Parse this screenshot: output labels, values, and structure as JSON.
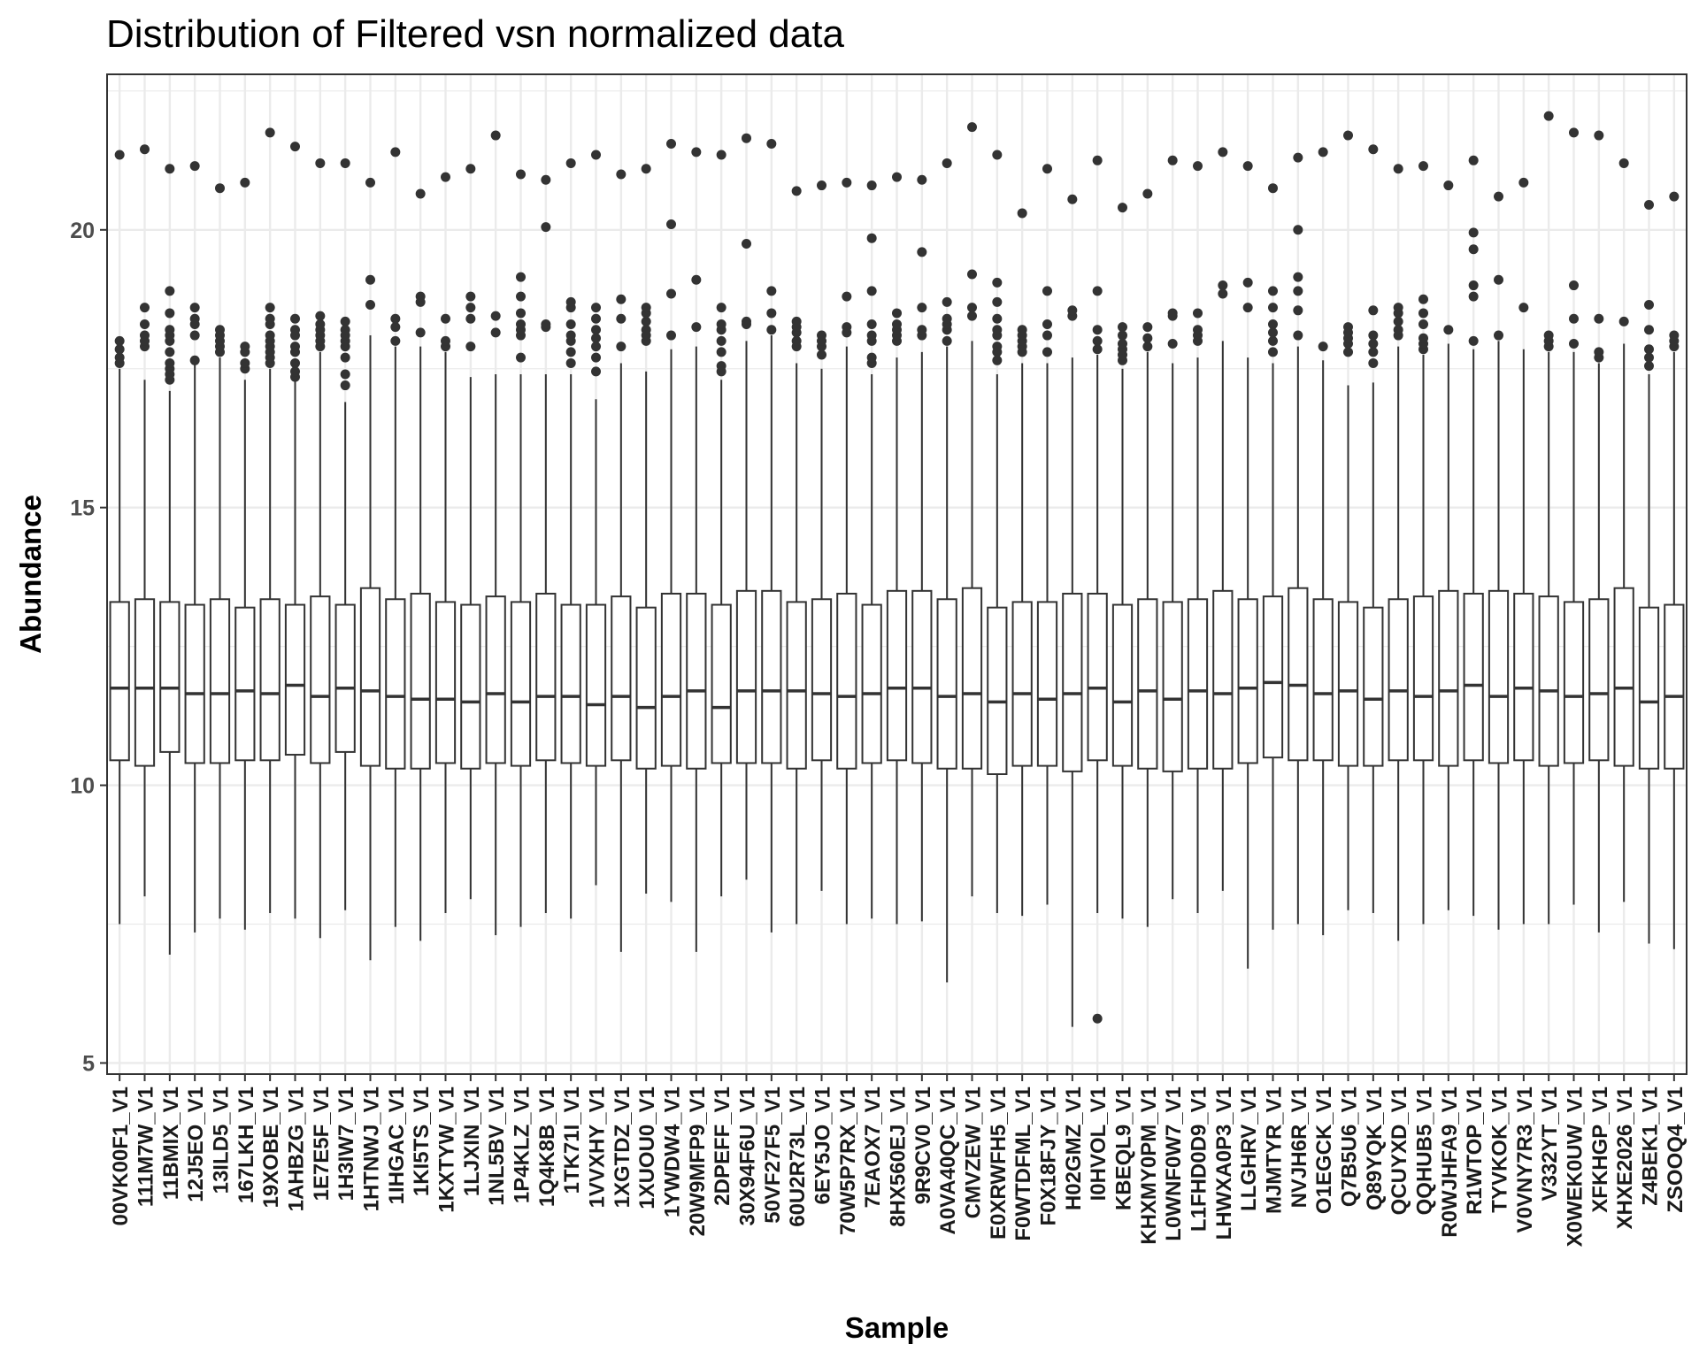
{
  "chart_data": {
    "type": "boxplot",
    "title": "Distribution of Filtered vsn normalized data",
    "xlabel": "Sample",
    "ylabel": "Abundance",
    "ylim": [
      4.8,
      22.8
    ],
    "yticks": [
      5,
      10,
      15,
      20
    ],
    "grid": true,
    "legend": "none",
    "colors": {
      "box_fill": "#ffffff",
      "box_line": "#333333",
      "outlier": "#333333",
      "grid": "#ebebeb",
      "panel_border": "#333333"
    },
    "categories": [
      "00VK00F1_V1",
      "111M7W_V1",
      "11BMIX_V1",
      "12J5EO_V1",
      "13ILD5_V1",
      "167LKH_V1",
      "19XOBE_V1",
      "1AHBZG_V1",
      "1E7E5F_V1",
      "1H3IW7_V1",
      "1HTNWJ_V1",
      "1IHGAC_V1",
      "1KI5TS_V1",
      "1KXTYW_V1",
      "1LJXIN_V1",
      "1NL5BV_V1",
      "1P4KLZ_V1",
      "1Q4K8B_V1",
      "1TK71I_V1",
      "1VVXHY_V1",
      "1XGTDZ_V1",
      "1XUOU0_V1",
      "1YWDW4_V1",
      "20W9MFP9_V1",
      "2DPEFF_V1",
      "30X94F6U_V1",
      "50VF27F5_V1",
      "60U2R73L_V1",
      "6EY5JO_V1",
      "70W5P7RX_V1",
      "7EAOX7_V1",
      "8HX560EJ_V1",
      "9R9CV0_V1",
      "A0VA40QC_V1",
      "CMVZEW_V1",
      "E0XRWFH5_V1",
      "F0WTDFML_V1",
      "F0X18FJY_V1",
      "H02GMZ_V1",
      "I0HVOL_V1",
      "KBEQL9_V1",
      "KHXMY0PM_V1",
      "L0WNF0W7_V1",
      "L1FHD0D9_V1",
      "LHWXA0P3_V1",
      "LLGHRV_V1",
      "MJMTYR_V1",
      "NVJH6R_V1",
      "O1EGCK_V1",
      "Q7B5U6_V1",
      "Q89YQK_V1",
      "QCUYXD_V1",
      "QQHUB5_V1",
      "R0WJHFA9_V1",
      "R1WTOP_V1",
      "TYVKOK_V1",
      "V0VNY7R3_V1",
      "V332YT_V1",
      "X0WEK0UW_V1",
      "XFKHGP_V1",
      "XHXE2026_V1",
      "Z4BEK1_V1",
      "ZSOOQ4_V1"
    ],
    "boxes": [
      {
        "lower": 7.5,
        "q1": 10.45,
        "median": 11.75,
        "q3": 13.3,
        "upper": 17.5,
        "outliers": [
          17.6,
          17.7,
          17.85,
          18.0,
          21.35
        ]
      },
      {
        "lower": 8.0,
        "q1": 10.35,
        "median": 11.75,
        "q3": 13.35,
        "upper": 17.3,
        "outliers": [
          17.9,
          18.0,
          18.1,
          18.3,
          18.6,
          21.45
        ]
      },
      {
        "lower": 6.95,
        "q1": 10.6,
        "median": 11.75,
        "q3": 13.3,
        "upper": 17.1,
        "outliers": [
          17.3,
          17.4,
          17.5,
          17.6,
          17.8,
          18.0,
          18.1,
          18.2,
          18.5,
          18.9,
          21.1
        ]
      },
      {
        "lower": 7.35,
        "q1": 10.4,
        "median": 11.65,
        "q3": 13.25,
        "upper": 17.6,
        "outliers": [
          17.65,
          18.1,
          18.3,
          18.4,
          18.6,
          21.15
        ]
      },
      {
        "lower": 7.6,
        "q1": 10.4,
        "median": 11.65,
        "q3": 13.35,
        "upper": 17.7,
        "outliers": [
          17.8,
          17.9,
          18.0,
          18.1,
          18.2,
          20.75
        ]
      },
      {
        "lower": 7.4,
        "q1": 10.45,
        "median": 11.7,
        "q3": 13.2,
        "upper": 17.3,
        "outliers": [
          17.5,
          17.6,
          17.8,
          17.9,
          20.85
        ]
      },
      {
        "lower": 7.7,
        "q1": 10.45,
        "median": 11.65,
        "q3": 13.35,
        "upper": 17.5,
        "outliers": [
          17.6,
          17.7,
          17.8,
          17.9,
          18.0,
          18.1,
          18.3,
          18.4,
          18.6,
          21.75
        ]
      },
      {
        "lower": 7.6,
        "q1": 10.55,
        "median": 11.8,
        "q3": 13.25,
        "upper": 17.3,
        "outliers": [
          17.35,
          17.45,
          17.6,
          17.8,
          17.9,
          18.1,
          18.2,
          18.4,
          21.5
        ]
      },
      {
        "lower": 7.25,
        "q1": 10.4,
        "median": 11.6,
        "q3": 13.4,
        "upper": 17.8,
        "outliers": [
          17.9,
          18.0,
          18.1,
          18.2,
          18.3,
          18.45,
          21.2
        ]
      },
      {
        "lower": 7.75,
        "q1": 10.6,
        "median": 11.75,
        "q3": 13.25,
        "upper": 16.9,
        "outliers": [
          17.2,
          17.4,
          17.7,
          17.9,
          18.0,
          18.1,
          18.2,
          18.35,
          21.2
        ]
      },
      {
        "lower": 6.85,
        "q1": 10.35,
        "median": 11.7,
        "q3": 13.55,
        "upper": 18.1,
        "outliers": [
          18.65,
          19.1,
          20.85
        ]
      },
      {
        "lower": 7.45,
        "q1": 10.3,
        "median": 11.6,
        "q3": 13.35,
        "upper": 17.9,
        "outliers": [
          18.0,
          18.25,
          18.4,
          21.4
        ]
      },
      {
        "lower": 7.2,
        "q1": 10.3,
        "median": 11.55,
        "q3": 13.45,
        "upper": 17.9,
        "outliers": [
          18.15,
          18.7,
          18.8,
          20.65
        ]
      },
      {
        "lower": 7.7,
        "q1": 10.4,
        "median": 11.55,
        "q3": 13.3,
        "upper": 17.8,
        "outliers": [
          17.9,
          18.0,
          18.4,
          20.95
        ]
      },
      {
        "lower": 7.95,
        "q1": 10.3,
        "median": 11.5,
        "q3": 13.25,
        "upper": 17.35,
        "outliers": [
          17.9,
          18.4,
          18.6,
          18.8,
          21.1
        ]
      },
      {
        "lower": 7.3,
        "q1": 10.4,
        "median": 11.65,
        "q3": 13.4,
        "upper": 17.4,
        "outliers": [
          18.15,
          18.45,
          21.7
        ]
      },
      {
        "lower": 7.45,
        "q1": 10.35,
        "median": 11.5,
        "q3": 13.3,
        "upper": 17.4,
        "outliers": [
          17.7,
          18.1,
          18.2,
          18.3,
          18.5,
          18.8,
          19.15,
          21.0
        ]
      },
      {
        "lower": 7.7,
        "q1": 10.45,
        "median": 11.6,
        "q3": 13.45,
        "upper": 17.4,
        "outliers": [
          18.25,
          18.3,
          20.05,
          20.9
        ]
      },
      {
        "lower": 7.6,
        "q1": 10.4,
        "median": 11.6,
        "q3": 13.25,
        "upper": 17.4,
        "outliers": [
          17.6,
          17.8,
          18.0,
          18.1,
          18.3,
          18.6,
          18.7,
          21.2
        ]
      },
      {
        "lower": 8.2,
        "q1": 10.35,
        "median": 11.45,
        "q3": 13.25,
        "upper": 16.95,
        "outliers": [
          17.45,
          17.7,
          17.9,
          18.05,
          18.2,
          18.4,
          18.6,
          21.35
        ]
      },
      {
        "lower": 7.0,
        "q1": 10.45,
        "median": 11.6,
        "q3": 13.4,
        "upper": 17.6,
        "outliers": [
          17.9,
          18.4,
          18.75,
          21.0
        ]
      },
      {
        "lower": 8.05,
        "q1": 10.3,
        "median": 11.4,
        "q3": 13.2,
        "upper": 17.45,
        "outliers": [
          18.0,
          18.1,
          18.2,
          18.35,
          18.5,
          18.6,
          21.1
        ]
      },
      {
        "lower": 7.9,
        "q1": 10.35,
        "median": 11.6,
        "q3": 13.45,
        "upper": 17.85,
        "outliers": [
          18.1,
          18.85,
          20.1,
          21.55
        ]
      },
      {
        "lower": 7.0,
        "q1": 10.3,
        "median": 11.7,
        "q3": 13.45,
        "upper": 17.9,
        "outliers": [
          18.25,
          19.1,
          21.4
        ]
      },
      {
        "lower": 8.0,
        "q1": 10.4,
        "median": 11.4,
        "q3": 13.25,
        "upper": 17.3,
        "outliers": [
          17.45,
          17.55,
          17.8,
          18.0,
          18.2,
          18.3,
          18.6,
          21.35
        ]
      },
      {
        "lower": 8.3,
        "q1": 10.4,
        "median": 11.7,
        "q3": 13.5,
        "upper": 18.0,
        "outliers": [
          18.3,
          18.35,
          19.75,
          21.65
        ]
      },
      {
        "lower": 7.35,
        "q1": 10.4,
        "median": 11.7,
        "q3": 13.5,
        "upper": 18.1,
        "outliers": [
          18.2,
          18.5,
          18.9,
          21.55
        ]
      },
      {
        "lower": 7.5,
        "q1": 10.3,
        "median": 11.7,
        "q3": 13.3,
        "upper": 17.6,
        "outliers": [
          17.9,
          18.0,
          18.15,
          18.25,
          18.35,
          20.7
        ]
      },
      {
        "lower": 8.1,
        "q1": 10.45,
        "median": 11.65,
        "q3": 13.35,
        "upper": 17.5,
        "outliers": [
          17.75,
          17.9,
          18.0,
          18.1,
          20.8
        ]
      },
      {
        "lower": 7.5,
        "q1": 10.3,
        "median": 11.6,
        "q3": 13.45,
        "upper": 17.9,
        "outliers": [
          18.15,
          18.25,
          18.8,
          20.85
        ]
      },
      {
        "lower": 7.6,
        "q1": 10.4,
        "median": 11.65,
        "q3": 13.25,
        "upper": 17.4,
        "outliers": [
          17.6,
          17.7,
          18.0,
          18.1,
          18.3,
          18.9,
          19.85,
          20.8
        ]
      },
      {
        "lower": 7.5,
        "q1": 10.45,
        "median": 11.75,
        "q3": 13.5,
        "upper": 17.7,
        "outliers": [
          18.0,
          18.1,
          18.2,
          18.3,
          18.5,
          20.95
        ]
      },
      {
        "lower": 7.55,
        "q1": 10.4,
        "median": 11.75,
        "q3": 13.5,
        "upper": 17.8,
        "outliers": [
          18.1,
          18.2,
          18.6,
          19.6,
          20.9
        ]
      },
      {
        "lower": 6.45,
        "q1": 10.3,
        "median": 11.6,
        "q3": 13.35,
        "upper": 17.9,
        "outliers": [
          18.0,
          18.2,
          18.3,
          18.4,
          18.7,
          21.2
        ]
      },
      {
        "lower": 8.0,
        "q1": 10.3,
        "median": 11.65,
        "q3": 13.55,
        "upper": 18.0,
        "outliers": [
          18.45,
          18.6,
          19.2,
          21.85
        ]
      },
      {
        "lower": 7.7,
        "q1": 10.2,
        "median": 11.5,
        "q3": 13.2,
        "upper": 17.4,
        "outliers": [
          17.65,
          17.8,
          17.9,
          18.1,
          18.2,
          18.4,
          18.7,
          19.05,
          21.35
        ]
      },
      {
        "lower": 7.65,
        "q1": 10.35,
        "median": 11.65,
        "q3": 13.3,
        "upper": 17.6,
        "outliers": [
          17.8,
          17.9,
          18.0,
          18.1,
          18.2,
          20.3
        ]
      },
      {
        "lower": 7.85,
        "q1": 10.35,
        "median": 11.55,
        "q3": 13.3,
        "upper": 17.6,
        "outliers": [
          17.8,
          18.1,
          18.3,
          18.9,
          21.1
        ]
      },
      {
        "lower": 5.65,
        "q1": 10.25,
        "median": 11.65,
        "q3": 13.45,
        "upper": 17.7,
        "outliers": [
          18.45,
          18.55,
          20.55
        ]
      },
      {
        "lower": 7.7,
        "q1": 10.45,
        "median": 11.75,
        "q3": 13.45,
        "upper": 17.75,
        "outliers": [
          5.8,
          17.85,
          18.0,
          18.2,
          18.9,
          21.25
        ]
      },
      {
        "lower": 7.6,
        "q1": 10.35,
        "median": 11.5,
        "q3": 13.25,
        "upper": 17.5,
        "outliers": [
          17.65,
          17.75,
          17.85,
          17.95,
          18.1,
          18.25,
          20.4
        ]
      },
      {
        "lower": 7.45,
        "q1": 10.3,
        "median": 11.7,
        "q3": 13.35,
        "upper": 17.8,
        "outliers": [
          17.9,
          18.05,
          18.25,
          20.65
        ]
      },
      {
        "lower": 7.95,
        "q1": 10.25,
        "median": 11.55,
        "q3": 13.3,
        "upper": 17.6,
        "outliers": [
          17.95,
          18.45,
          18.5,
          21.25
        ]
      },
      {
        "lower": 7.7,
        "q1": 10.3,
        "median": 11.7,
        "q3": 13.35,
        "upper": 17.7,
        "outliers": [
          18.0,
          18.1,
          18.2,
          18.5,
          21.15
        ]
      },
      {
        "lower": 8.1,
        "q1": 10.3,
        "median": 11.65,
        "q3": 13.5,
        "upper": 18.0,
        "outliers": [
          18.85,
          19.0,
          21.4
        ]
      },
      {
        "lower": 6.7,
        "q1": 10.4,
        "median": 11.75,
        "q3": 13.35,
        "upper": 17.7,
        "outliers": [
          18.6,
          19.05,
          21.15
        ]
      },
      {
        "lower": 7.4,
        "q1": 10.5,
        "median": 11.85,
        "q3": 13.4,
        "upper": 17.6,
        "outliers": [
          17.8,
          18.0,
          18.15,
          18.3,
          18.6,
          18.9,
          20.75
        ]
      },
      {
        "lower": 7.5,
        "q1": 10.45,
        "median": 11.8,
        "q3": 13.55,
        "upper": 17.9,
        "outliers": [
          18.1,
          18.55,
          18.9,
          19.15,
          20.0,
          21.3
        ]
      },
      {
        "lower": 7.3,
        "q1": 10.45,
        "median": 11.65,
        "q3": 13.35,
        "upper": 17.65,
        "outliers": [
          17.9,
          21.4
        ]
      },
      {
        "lower": 7.75,
        "q1": 10.35,
        "median": 11.7,
        "q3": 13.3,
        "upper": 17.2,
        "outliers": [
          17.8,
          17.95,
          18.05,
          18.15,
          18.25,
          21.7
        ]
      },
      {
        "lower": 7.7,
        "q1": 10.35,
        "median": 11.55,
        "q3": 13.2,
        "upper": 17.25,
        "outliers": [
          17.6,
          17.8,
          17.95,
          18.1,
          18.55,
          21.45
        ]
      },
      {
        "lower": 7.2,
        "q1": 10.45,
        "median": 11.7,
        "q3": 13.35,
        "upper": 17.9,
        "outliers": [
          18.1,
          18.2,
          18.35,
          18.5,
          18.6,
          21.1
        ]
      },
      {
        "lower": 7.5,
        "q1": 10.45,
        "median": 11.6,
        "q3": 13.4,
        "upper": 17.75,
        "outliers": [
          17.85,
          17.95,
          18.05,
          18.3,
          18.5,
          18.75,
          21.15
        ]
      },
      {
        "lower": 7.75,
        "q1": 10.35,
        "median": 11.7,
        "q3": 13.5,
        "upper": 17.95,
        "outliers": [
          18.2,
          20.8
        ]
      },
      {
        "lower": 7.65,
        "q1": 10.45,
        "median": 11.8,
        "q3": 13.45,
        "upper": 17.85,
        "outliers": [
          18.0,
          18.8,
          19.0,
          19.65,
          19.95,
          21.25
        ]
      },
      {
        "lower": 7.4,
        "q1": 10.4,
        "median": 11.6,
        "q3": 13.5,
        "upper": 18.0,
        "outliers": [
          18.1,
          19.1,
          20.6
        ]
      },
      {
        "lower": 7.5,
        "q1": 10.45,
        "median": 11.75,
        "q3": 13.45,
        "upper": 17.85,
        "outliers": [
          18.6,
          20.85
        ]
      },
      {
        "lower": 7.5,
        "q1": 10.35,
        "median": 11.7,
        "q3": 13.4,
        "upper": 17.8,
        "outliers": [
          17.9,
          18.0,
          18.1,
          22.05
        ]
      },
      {
        "lower": 7.85,
        "q1": 10.4,
        "median": 11.6,
        "q3": 13.3,
        "upper": 17.8,
        "outliers": [
          17.95,
          18.4,
          19.0,
          21.75
        ]
      },
      {
        "lower": 7.35,
        "q1": 10.45,
        "median": 11.65,
        "q3": 13.35,
        "upper": 17.6,
        "outliers": [
          17.7,
          17.8,
          18.4,
          21.7
        ]
      },
      {
        "lower": 7.9,
        "q1": 10.35,
        "median": 11.75,
        "q3": 13.55,
        "upper": 17.95,
        "outliers": [
          18.35,
          21.2
        ]
      },
      {
        "lower": 7.15,
        "q1": 10.3,
        "median": 11.5,
        "q3": 13.2,
        "upper": 17.4,
        "outliers": [
          17.55,
          17.7,
          17.85,
          18.2,
          18.65,
          20.45
        ]
      },
      {
        "lower": 7.05,
        "q1": 10.3,
        "median": 11.6,
        "q3": 13.25,
        "upper": 17.8,
        "outliers": [
          17.9,
          18.0,
          18.1,
          20.6
        ]
      }
    ]
  }
}
